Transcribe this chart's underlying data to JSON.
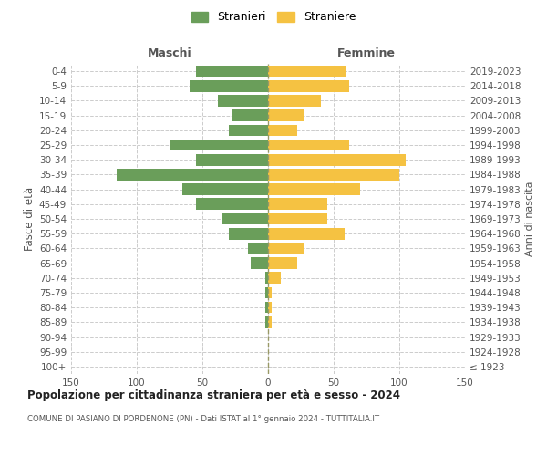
{
  "age_groups": [
    "100+",
    "95-99",
    "90-94",
    "85-89",
    "80-84",
    "75-79",
    "70-74",
    "65-69",
    "60-64",
    "55-59",
    "50-54",
    "45-49",
    "40-44",
    "35-39",
    "30-34",
    "25-29",
    "20-24",
    "15-19",
    "10-14",
    "5-9",
    "0-4"
  ],
  "birth_years": [
    "≤ 1923",
    "1924-1928",
    "1929-1933",
    "1934-1938",
    "1939-1943",
    "1944-1948",
    "1949-1953",
    "1954-1958",
    "1959-1963",
    "1964-1968",
    "1969-1973",
    "1974-1978",
    "1979-1983",
    "1984-1988",
    "1989-1993",
    "1994-1998",
    "1999-2003",
    "2004-2008",
    "2009-2013",
    "2014-2018",
    "2019-2023"
  ],
  "maschi": [
    0,
    0,
    0,
    2,
    2,
    2,
    2,
    13,
    15,
    30,
    35,
    55,
    65,
    115,
    55,
    75,
    30,
    28,
    38,
    60,
    55
  ],
  "femmine": [
    0,
    0,
    0,
    3,
    3,
    3,
    10,
    22,
    28,
    58,
    45,
    45,
    70,
    100,
    105,
    62,
    22,
    28,
    40,
    62,
    60
  ],
  "color_maschi": "#6a9e5a",
  "color_femmine": "#f5c242",
  "title": "Popolazione per cittadinanza straniera per età e sesso - 2024",
  "subtitle": "COMUNE DI PASIANO DI PORDENONE (PN) - Dati ISTAT al 1° gennaio 2024 - TUTTITALIA.IT",
  "ylabel_left": "Fasce di età",
  "ylabel_right": "Anni di nascita",
  "header_maschi": "Maschi",
  "header_femmine": "Femmine",
  "legend_maschi": "Stranieri",
  "legend_femmine": "Straniere",
  "xlim": 150,
  "background_color": "#ffffff",
  "grid_color": "#cccccc",
  "center_line_color": "#999966"
}
